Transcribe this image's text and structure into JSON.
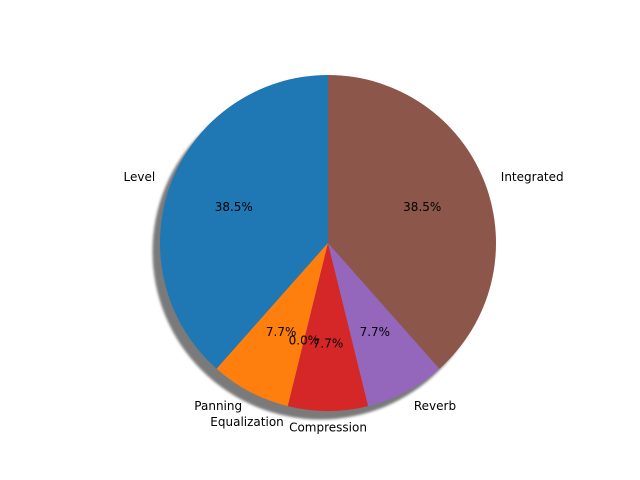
{
  "chart_data": {
    "type": "pie",
    "title": "",
    "categories": [
      "Level",
      "Panning",
      "Equalization",
      "Compression",
      "Reverb",
      "Integrated"
    ],
    "values": [
      38.5,
      7.7,
      0.0,
      7.7,
      7.7,
      38.5
    ],
    "value_labels": [
      "38.5%",
      "7.7%",
      "0.0%",
      "7.7%",
      "7.7%",
      "38.5%"
    ],
    "colors": [
      "#1f77b4",
      "#ff7f0e",
      "#2ca02c",
      "#d62728",
      "#9467bd",
      "#8c564b"
    ],
    "start_angle_deg": 90,
    "direction": "counterclockwise",
    "shadow": true,
    "legend": "none"
  }
}
